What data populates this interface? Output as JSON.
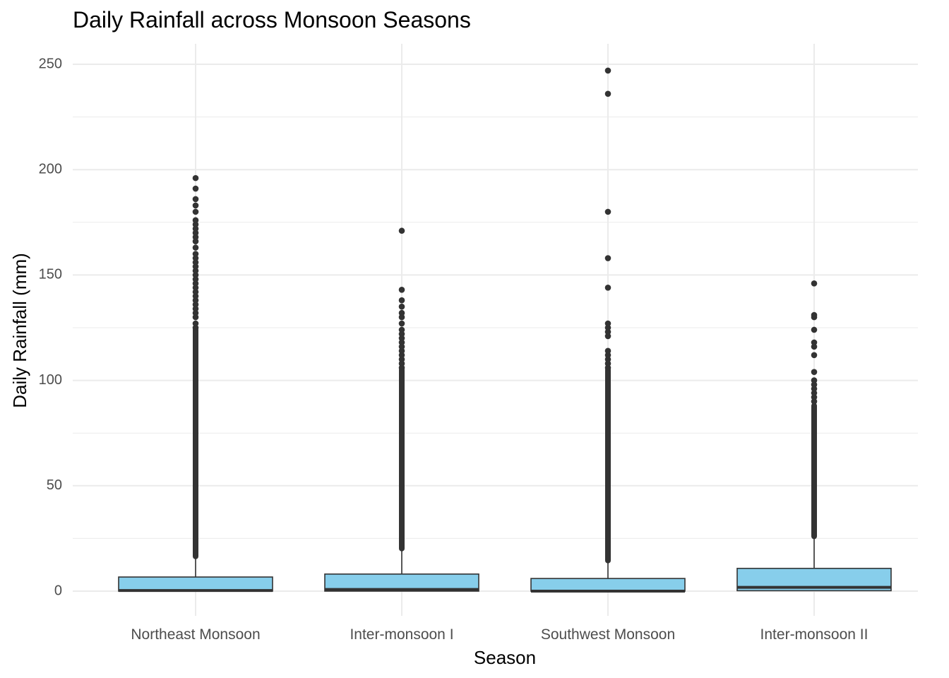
{
  "chart_data": {
    "type": "box",
    "title": "Daily Rainfall across Monsoon Seasons",
    "xlabel": "Season",
    "ylabel": "Daily Rainfall (mm)",
    "ylim": [
      -12,
      260
    ],
    "y_ticks": [
      0,
      50,
      100,
      150,
      200,
      250
    ],
    "grid": true,
    "box_color": "#87CEEB",
    "line_color": "#333333",
    "categories": [
      "Northeast Monsoon",
      "Inter-monsoon I",
      "Southwest Monsoon",
      "Inter-monsoon II"
    ],
    "boxes": [
      {
        "category": "Northeast Monsoon",
        "whisker_low": 0,
        "q1": 0,
        "median": 0.3,
        "q3": 6.7,
        "whisker_high": 16.5,
        "outlier_range": [
          16.5,
          124
        ],
        "outliers": [
          125,
          127,
          130,
          132,
          134,
          136,
          138,
          140,
          142,
          144,
          146,
          148,
          150,
          152,
          154,
          156,
          158,
          160,
          163,
          166,
          168,
          170,
          172,
          174,
          176,
          180,
          183,
          186,
          191,
          196
        ]
      },
      {
        "category": "Inter-monsoon I",
        "whisker_low": 0,
        "q1": 0,
        "median": 0.8,
        "q3": 8.1,
        "whisker_high": 20.2,
        "outlier_range": [
          20.2,
          105
        ],
        "outliers": [
          106,
          108,
          110,
          112,
          114,
          116,
          118,
          120,
          122,
          124,
          127,
          130,
          132,
          135,
          138,
          143,
          171
        ]
      },
      {
        "category": "Southwest Monsoon",
        "whisker_low": 0,
        "q1": 0,
        "median": 0,
        "q3": 6.0,
        "whisker_high": 14.5,
        "outlier_range": [
          14.5,
          105
        ],
        "outliers": [
          106,
          108,
          110,
          112,
          114,
          121,
          123,
          125,
          127,
          144,
          158,
          180,
          236,
          247
        ]
      },
      {
        "category": "Inter-monsoon II",
        "whisker_low": 0,
        "q1": 0.2,
        "median": 1.8,
        "q3": 10.8,
        "whisker_high": 26.0,
        "outlier_range": [
          26.0,
          88
        ],
        "outliers": [
          90,
          92,
          94,
          96,
          98,
          100,
          104,
          112,
          116,
          118,
          124,
          130,
          131,
          146
        ]
      }
    ]
  }
}
